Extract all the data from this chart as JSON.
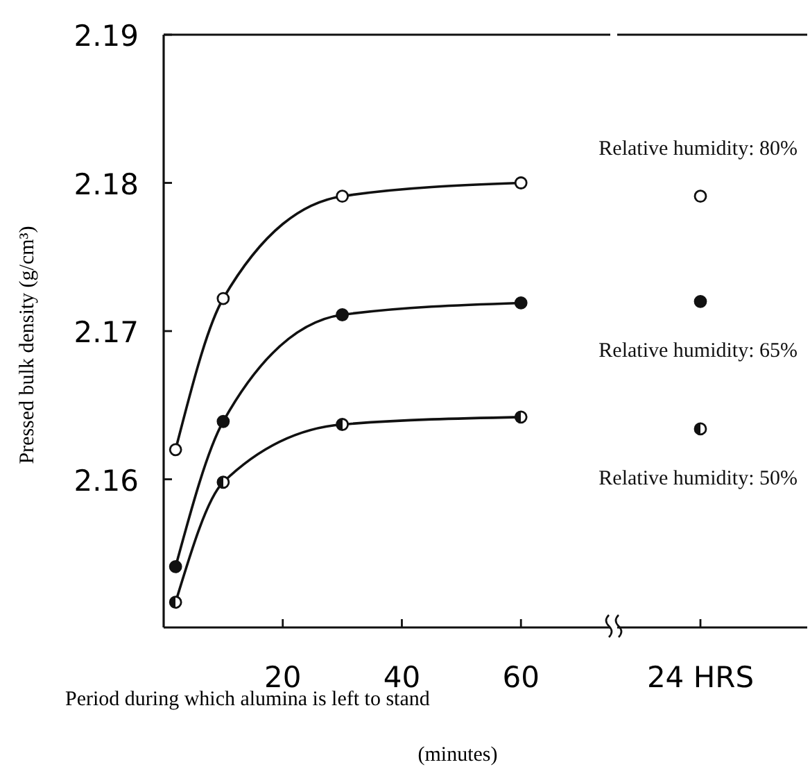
{
  "chart_data": [
    {
      "type": "line",
      "ylabel": "Pressed bulk density (g/cm³)",
      "xlabel": "Period during which alumina is left to stand\n(minutes)",
      "x": [
        2,
        10,
        30,
        60
      ],
      "series": [
        {
          "color": "#111111",
          "values": [
            2.162,
            2.1722,
            2.1791,
            2.18
          ]
        },
        {
          "color": "#111111",
          "values": [
            2.1541,
            2.1639,
            2.1711,
            2.1719
          ]
        },
        {
          "color": "#111111",
          "values": [
            2.1517,
            2.1598,
            2.1637,
            2.1642
          ]
        }
      ],
      "xlim": [
        0,
        75
      ],
      "xticks": [
        20,
        40,
        60
      ],
      "ylim": [
        2.15,
        2.19
      ],
      "yticks": [
        2.16,
        2.17,
        2.18,
        2.19
      ],
      "grid": false,
      "marker": "circle",
      "line_style": "solid"
    },
    {
      "type": "line",
      "categories": [
        "24 HRS"
      ],
      "series": [
        {
          "name": "Relative humidity: 80%",
          "color": "#111111",
          "values": [
            2.1791
          ]
        },
        {
          "name": "Relative humidity: 65%",
          "color": "#111111",
          "values": [
            2.172
          ]
        },
        {
          "name": "Relative humidity: 50%",
          "color": "#111111",
          "values": [
            2.1634
          ]
        }
      ],
      "ylim": [
        2.15,
        2.19
      ],
      "tick_labels": "x",
      "grid": false,
      "marker": "circle",
      "line_style": "solid"
    }
  ]
}
